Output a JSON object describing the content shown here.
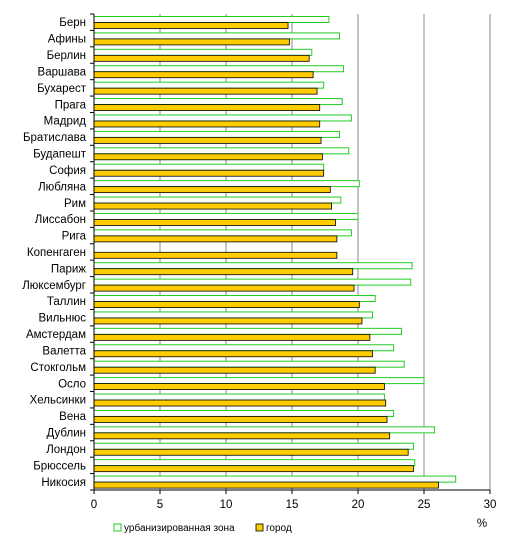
{
  "chart_data": {
    "type": "bar",
    "orientation": "horizontal",
    "categories": [
      "Берн",
      "Афины",
      "Берлин",
      "Варшава",
      "Бухарест",
      "Прага",
      "Мадрид",
      "Братислава",
      "Будапешт",
      "София",
      "Любляна",
      "Рим",
      "Лиссабон",
      "Рига",
      "Копенгаген",
      "Париж",
      "Люксембург",
      "Таллин",
      "Вильнюс",
      "Амстердам",
      "Валетта",
      "Стокгольм",
      "Осло",
      "Хельсинки",
      "Вена",
      "Дублин",
      "Лондон",
      "Брюссель",
      "Никосия"
    ],
    "series": [
      {
        "name": "урбанизированная зона",
        "style": "outline",
        "color": "#22cc22",
        "values": [
          17.8,
          18.6,
          16.5,
          18.9,
          17.4,
          18.8,
          19.5,
          18.6,
          19.3,
          17.4,
          20.1,
          18.7,
          20.0,
          19.5,
          null,
          24.1,
          24.0,
          21.3,
          21.1,
          23.3,
          22.7,
          23.5,
          25.0,
          22.0,
          22.7,
          25.8,
          24.2,
          24.3,
          27.4
        ]
      },
      {
        "name": "город",
        "style": "filled",
        "color": "#ffcc00",
        "values": [
          14.7,
          14.8,
          16.3,
          16.6,
          16.9,
          17.1,
          17.1,
          17.2,
          17.3,
          17.4,
          17.9,
          18.0,
          18.3,
          18.4,
          18.4,
          19.6,
          19.7,
          20.1,
          20.3,
          20.9,
          21.1,
          21.3,
          22.0,
          22.1,
          22.2,
          22.4,
          23.8,
          24.2,
          26.1
        ]
      }
    ],
    "xlim": [
      0,
      30
    ],
    "xticks": [
      "0",
      "5",
      "10",
      "15",
      "20",
      "25",
      "30"
    ],
    "xlabel": "%",
    "grid": "vertical",
    "legend_position": "bottom-left"
  }
}
